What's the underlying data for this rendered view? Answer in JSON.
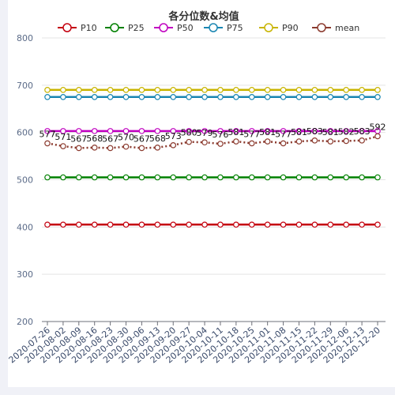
{
  "chart_data": {
    "type": "line",
    "title": "各分位数&均值",
    "xlabel": "",
    "ylabel": "",
    "ylim": [
      200,
      800
    ],
    "yticks": [
      "200",
      "300",
      "400",
      "500",
      "600",
      "700",
      "800"
    ],
    "legend_position": "top-center",
    "grid": "horizontal",
    "categories": [
      "2020-07-26",
      "2020-08-02",
      "2020-08-09",
      "2020-08-16",
      "2020-08-23",
      "2020-08-30",
      "2020-09-06",
      "2020-09-13",
      "2020-09-20",
      "2020-09-27",
      "2020-10-04",
      "2020-10-11",
      "2020-10-18",
      "2020-10-25",
      "2020-11-01",
      "2020-11-08",
      "2020-11-15",
      "2020-11-22",
      "2020-11-29",
      "2020-12-06",
      "2020-12-13",
      "2020-12-20"
    ],
    "series": [
      {
        "name": "P10",
        "color": "#c4000f",
        "style": "solid",
        "values": [
          405,
          405,
          405,
          405,
          405,
          405,
          405,
          405,
          405,
          405,
          405,
          405,
          405,
          405,
          405,
          405,
          405,
          405,
          405,
          405,
          405,
          405
        ]
      },
      {
        "name": "P25",
        "color": "#008000",
        "style": "solid",
        "values": [
          505,
          505,
          505,
          505,
          505,
          505,
          505,
          505,
          505,
          505,
          505,
          505,
          505,
          505,
          505,
          505,
          505,
          505,
          505,
          505,
          505,
          505
        ]
      },
      {
        "name": "P50",
        "color": "#c000c0",
        "style": "solid",
        "values": [
          603,
          603,
          603,
          603,
          603,
          603,
          603,
          603,
          603,
          603,
          603,
          603,
          603,
          603,
          603,
          603,
          603,
          603,
          603,
          603,
          603,
          603
        ]
      },
      {
        "name": "P75",
        "color": "#1a86b2",
        "style": "solid",
        "values": [
          675,
          675,
          675,
          675,
          675,
          675,
          675,
          675,
          675,
          675,
          675,
          675,
          675,
          675,
          675,
          675,
          675,
          675,
          675,
          675,
          675,
          675
        ]
      },
      {
        "name": "P90",
        "color": "#c8b400",
        "style": "solid",
        "values": [
          690,
          690,
          690,
          690,
          690,
          690,
          690,
          690,
          690,
          690,
          690,
          690,
          690,
          690,
          690,
          690,
          690,
          690,
          690,
          690,
          690,
          690
        ]
      },
      {
        "name": "mean",
        "color": "#8b3a2e",
        "style": "dotted",
        "values": [
          577,
          571,
          567,
          568,
          567,
          570,
          567,
          568,
          573,
          580,
          579,
          576,
          581,
          577,
          581,
          577,
          581,
          583,
          581,
          582,
          583,
          592
        ]
      }
    ],
    "data_labels": [
      "577",
      "571",
      "567",
      "568",
      "567",
      "570",
      "567",
      "568",
      "573",
      "580",
      "579",
      "576",
      "581",
      "577",
      "581",
      "577",
      "581",
      "583",
      "581",
      "582",
      "583",
      "592"
    ]
  }
}
